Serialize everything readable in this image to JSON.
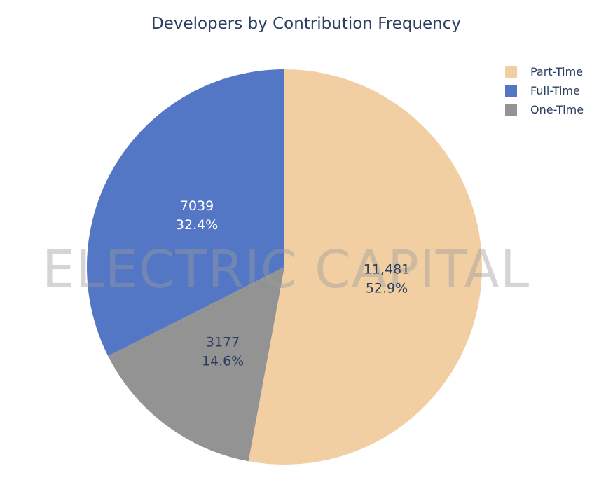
{
  "chart_data": {
    "type": "pie",
    "title": "Developers by Contribution Frequency",
    "direction": "clockwise",
    "start_angle_deg": 0,
    "slices": [
      {
        "label": "Part-Time",
        "value": 11481,
        "value_text": "11,481",
        "percent_text": "52.9%",
        "color": "#f2cfa3",
        "text_color": "#2a3f5f"
      },
      {
        "label": "One-Time",
        "value": 3177,
        "value_text": "3177",
        "percent_text": "14.6%",
        "color": "#939393",
        "text_color": "#2a3f5f"
      },
      {
        "label": "Full-Time",
        "value": 7039,
        "value_text": "7039",
        "percent_text": "32.4%",
        "color": "#5477c5",
        "text_color": "#ffffff"
      }
    ],
    "legend": {
      "position": "top-right",
      "items": [
        {
          "label": "Part-Time",
          "color": "#f2cfa3"
        },
        {
          "label": "Full-Time",
          "color": "#5477c5"
        },
        {
          "label": "One-Time",
          "color": "#939393"
        }
      ]
    }
  },
  "watermark": "ELECTRIC CAPITAL"
}
